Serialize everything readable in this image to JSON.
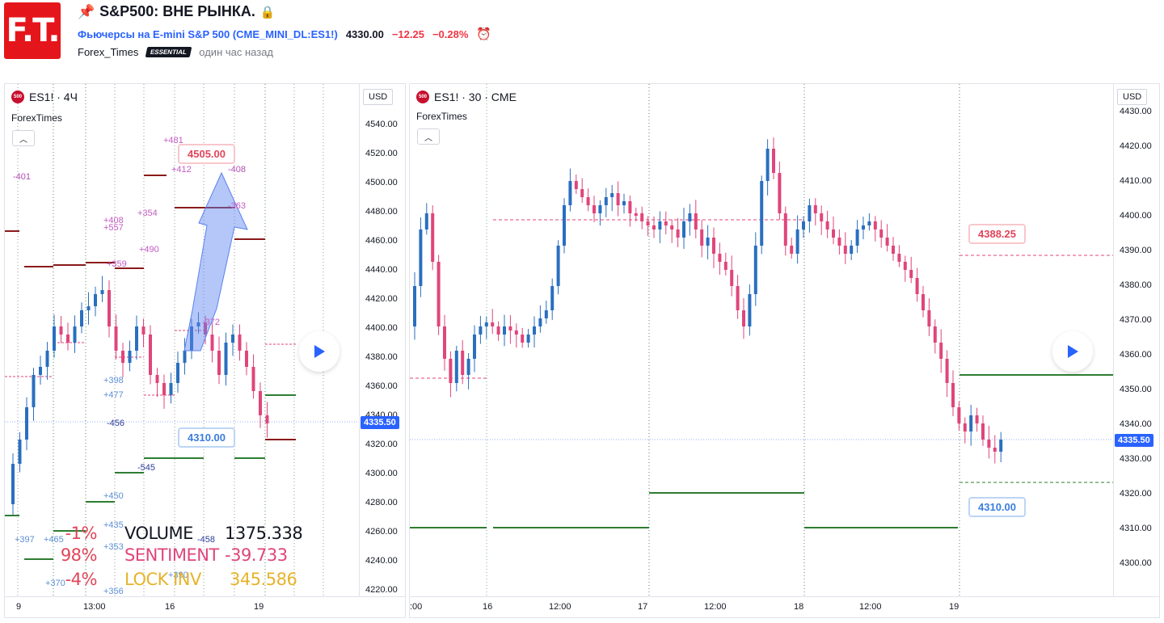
{
  "header": {
    "logo_text": "F.T.",
    "title": "S&P500: ВНЕ РЫНКА.",
    "symbol_text": "Фьючерсы на E-mini S&P 500",
    "symbol_code": "(CME_MINI_DL:ES1!)",
    "price": "4330.00",
    "change": "−12.25",
    "change_pct": "−0.28%",
    "author": "Forex_Times",
    "badge": "ESSENTIAL",
    "published": "один час назад"
  },
  "left_chart": {
    "symbol_label": "ES1! · 4Ч",
    "indicator": "ForexTimes",
    "currency": "USD",
    "price_ticks": [
      "4540.00",
      "4520.00",
      "4500.00",
      "4480.00",
      "4460.00",
      "4440.00",
      "4420.00",
      "4400.00",
      "4380.00",
      "4360.00",
      "4340.00",
      "4320.00",
      "4300.00",
      "4280.00",
      "4260.00",
      "4240.00",
      "4220.00"
    ],
    "time_ticks": [
      "9",
      "13:00",
      "16",
      "19"
    ],
    "last_price": "4335.50",
    "callout_top": "4505.00",
    "callout_bottom": "4310.00",
    "level_labels": [
      "-401",
      "+481",
      "+412",
      "-408",
      "+408",
      "+557",
      "+354",
      "-363",
      "+490",
      "+359",
      "-372",
      "+398",
      "+477",
      "-456",
      "-545",
      "+450",
      "+435",
      "+353",
      "+397",
      "+465",
      "-458",
      "+370",
      "+390",
      "+356"
    ],
    "stats": {
      "row1_pct": "-1%",
      "row1_name": "VOLUME",
      "row1_value": "1375.338",
      "row2_pct": "98%",
      "row2_name": "SENTIMENT",
      "row2_value": "-39.733",
      "row3_pct": "-4%",
      "row3_name": "LOCK INV",
      "row3_value": "345.586"
    }
  },
  "right_chart": {
    "symbol_label": "ES1! · 30 · CME",
    "indicator": "ForexTimes",
    "currency": "USD",
    "price_ticks": [
      "4430.00",
      "4420.00",
      "4410.00",
      "4400.00",
      "4390.00",
      "4380.00",
      "4370.00",
      "4360.00",
      "4350.00",
      "4340.00",
      "4330.00",
      "4320.00",
      "4310.00",
      "4300.00"
    ],
    "time_ticks": [
      ":00",
      "16",
      "12:00",
      "17",
      "12:00",
      "18",
      "12:00",
      "19"
    ],
    "last_price": "4335.50",
    "callout_top": "4388.25",
    "callout_bottom": "4310.00"
  },
  "colors": {
    "up": "#2a6fbf",
    "down": "#e0457b",
    "red_level": "#8b1a1a",
    "green_level": "#2e7d32",
    "stat_red": "#e0455a",
    "stat_pink": "#e0457b",
    "stat_gold": "#e6b32a"
  }
}
